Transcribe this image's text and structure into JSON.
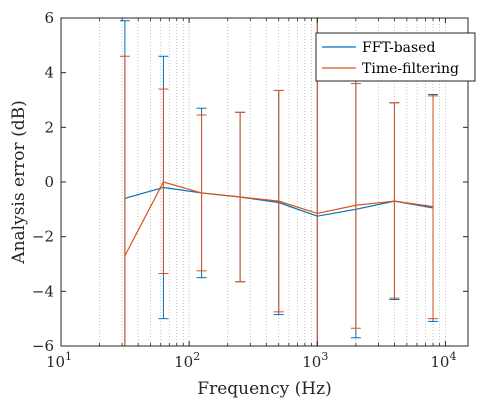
{
  "chart_data": {
    "type": "line",
    "xscale": "log",
    "xlim": [
      10,
      15000
    ],
    "ylim": [
      -6,
      6
    ],
    "xlabel": "Frequency (Hz)",
    "ylabel": "Analysis error (dB)",
    "title": "",
    "grid": "vertical dotted (major and minor)",
    "legend_position": "top-right",
    "x_ticks": [
      {
        "value": 10,
        "base": "10",
        "exp": "1"
      },
      {
        "value": 100,
        "base": "10",
        "exp": "2"
      },
      {
        "value": 1000,
        "base": "10",
        "exp": "3"
      },
      {
        "value": 10000,
        "base": "10",
        "exp": "4"
      }
    ],
    "y_ticks": [
      {
        "value": -6,
        "label": "−6"
      },
      {
        "value": -4,
        "label": "−4"
      },
      {
        "value": -2,
        "label": "−2"
      },
      {
        "value": 0,
        "label": "0"
      },
      {
        "value": 2,
        "label": "2"
      },
      {
        "value": 4,
        "label": "4"
      },
      {
        "value": 6,
        "label": "6"
      }
    ],
    "series": [
      {
        "name": "FFT-based",
        "color": "#0072BD",
        "points": [
          {
            "x": 31.5,
            "y": -0.6,
            "low": -6.0,
            "high": 5.9
          },
          {
            "x": 63,
            "y": -0.2,
            "low": -5.0,
            "high": 4.6
          },
          {
            "x": 125,
            "y": -0.4,
            "low": -3.5,
            "high": 2.7
          },
          {
            "x": 250,
            "y": -0.55,
            "low": -3.65,
            "high": 2.55
          },
          {
            "x": 500,
            "y": -0.75,
            "low": -4.85,
            "high": 3.35
          },
          {
            "x": 1000,
            "y": -1.25,
            "low": -6.0,
            "high": 6.0
          },
          {
            "x": 2000,
            "y": -1.0,
            "low": -5.7,
            "high": 3.7
          },
          {
            "x": 4000,
            "y": -0.7,
            "low": -4.3,
            "high": 2.9
          },
          {
            "x": 8000,
            "y": -0.95,
            "low": -5.1,
            "high": 3.2
          }
        ]
      },
      {
        "name": "Time-filtering",
        "color": "#D95319",
        "points": [
          {
            "x": 31.5,
            "y": -2.7,
            "low": -6.0,
            "high": 4.6
          },
          {
            "x": 63,
            "y": 0.0,
            "low": -3.35,
            "high": 3.4
          },
          {
            "x": 125,
            "y": -0.4,
            "low": -3.25,
            "high": 2.45
          },
          {
            "x": 250,
            "y": -0.55,
            "low": -3.65,
            "high": 2.55
          },
          {
            "x": 500,
            "y": -0.7,
            "low": -4.75,
            "high": 3.35
          },
          {
            "x": 1000,
            "y": -1.15,
            "low": -6.0,
            "high": 6.0
          },
          {
            "x": 2000,
            "y": -0.85,
            "low": -5.35,
            "high": 3.6
          },
          {
            "x": 4000,
            "y": -0.7,
            "low": -4.25,
            "high": 2.9
          },
          {
            "x": 8000,
            "y": -0.9,
            "low": -5.0,
            "high": 3.15
          }
        ]
      }
    ]
  }
}
